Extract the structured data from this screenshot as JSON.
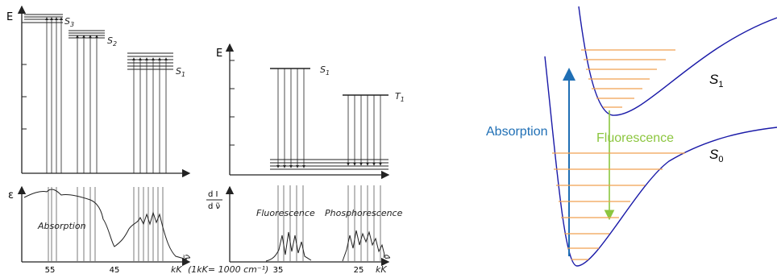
{
  "left_panel": {
    "energy_axis_label": "E",
    "levels": [
      {
        "main": "S",
        "sub": "3"
      },
      {
        "main": "S",
        "sub": "2"
      },
      {
        "main": "S",
        "sub": "1"
      }
    ],
    "spectrum_axis_label": "ε",
    "spectrum_label": "Absorption",
    "x_labels": [
      "55",
      "45"
    ],
    "x_unit": "kK",
    "x_unit_note": "(1kK= 1000 cm⁻¹)",
    "x_symbol": "ν̃"
  },
  "middle_panel": {
    "energy_axis_label": "E",
    "levels": [
      {
        "main": "S",
        "sub": "1"
      },
      {
        "main": "T",
        "sub": "1"
      }
    ],
    "spectrum_axis_label": {
      "numerator": "d I",
      "denominator": "d ν̃"
    },
    "spectrum_labels": [
      "Fluorescence",
      "Phosphorescence"
    ],
    "x_labels": [
      "35",
      "25"
    ],
    "x_unit": "kK",
    "x_symbol": "ν̃"
  },
  "right_panel": {
    "upper_state": {
      "main": "S",
      "sub": "1"
    },
    "lower_state": {
      "main": "S",
      "sub": "0"
    },
    "up_arrow_label": "Absorption",
    "down_arrow_label": "Fluorescence"
  }
}
